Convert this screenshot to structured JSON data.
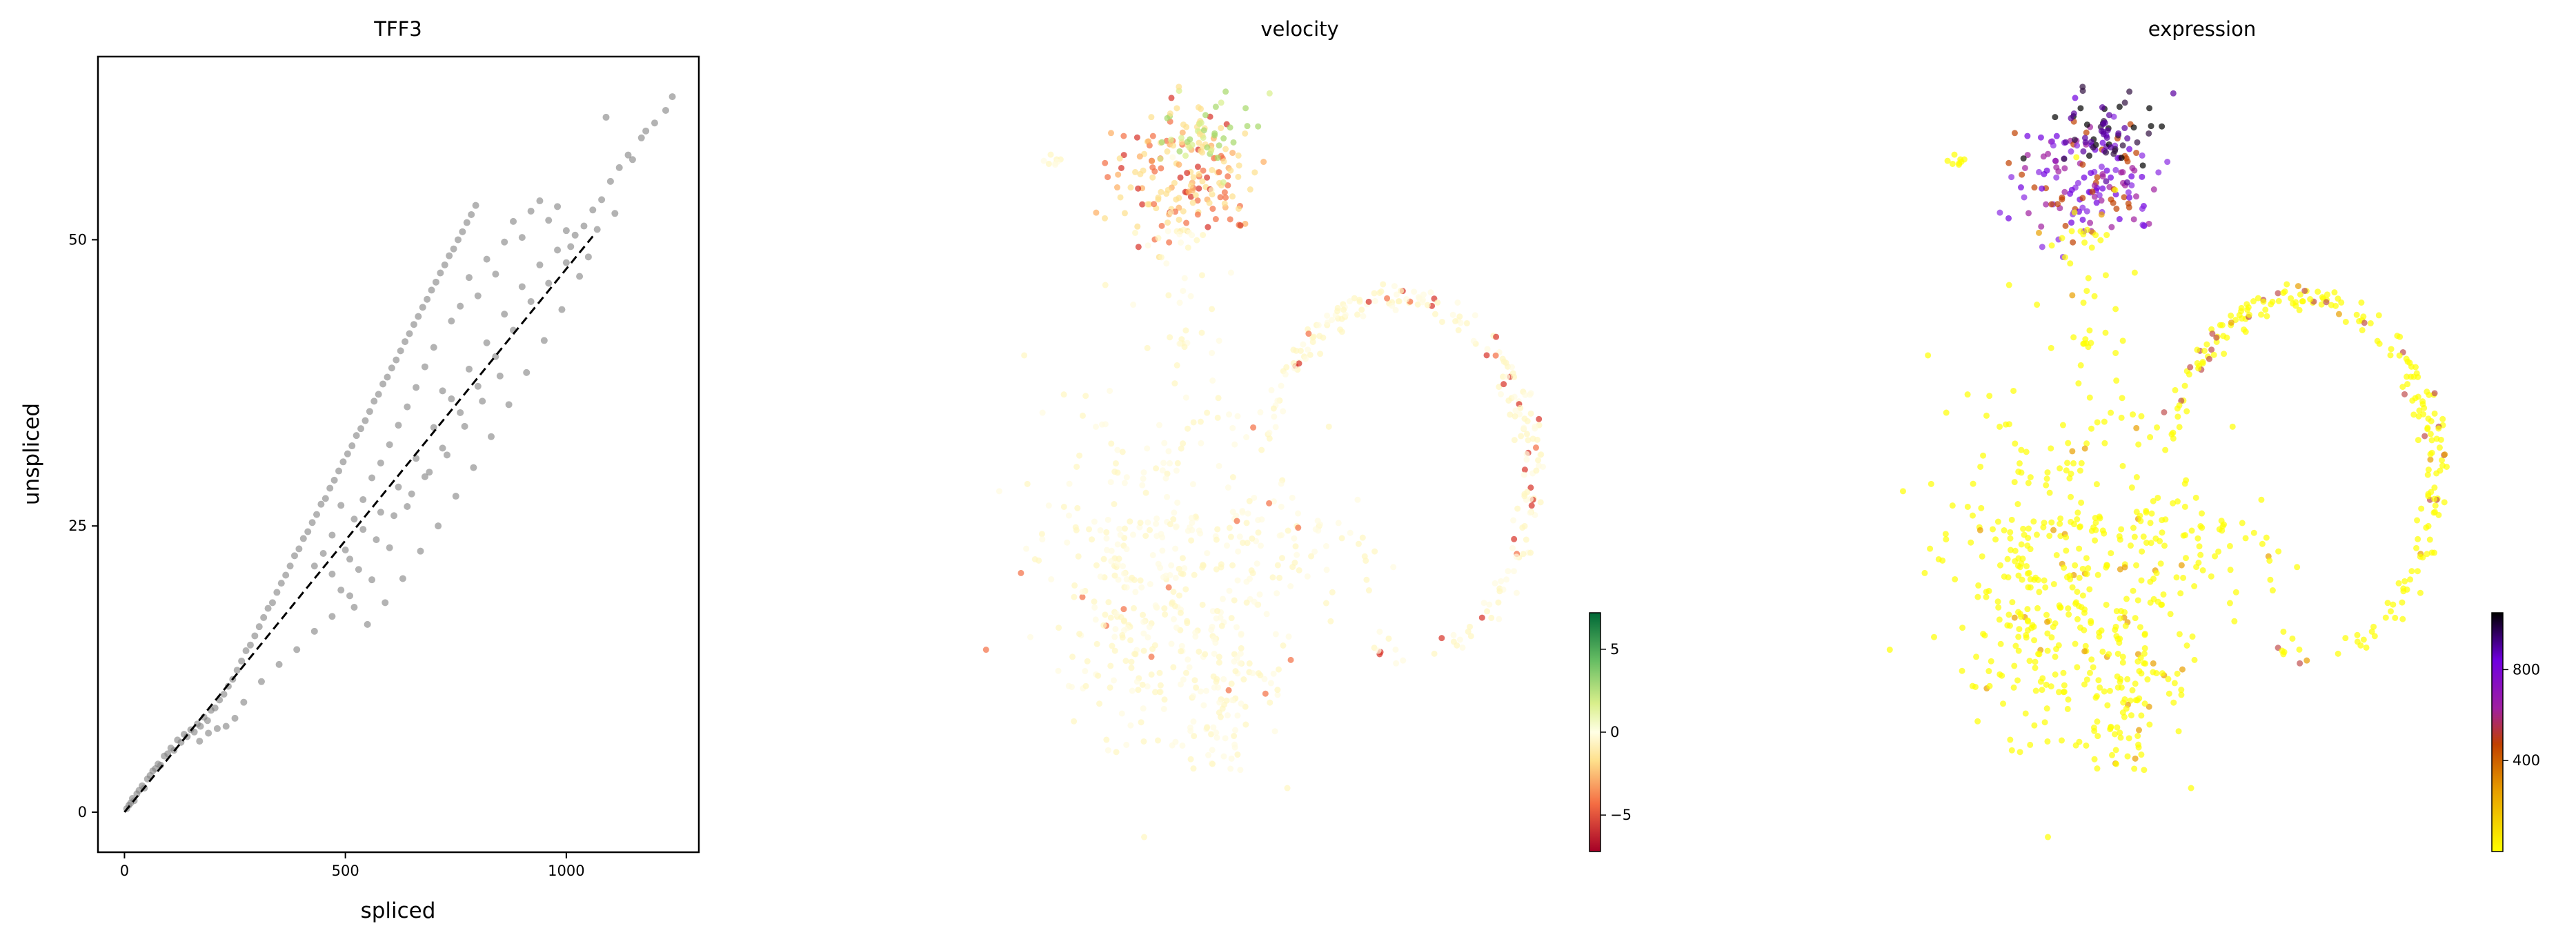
{
  "chart_data": [
    {
      "type": "scatter",
      "title": "TFF3",
      "xlabel": "spliced",
      "ylabel": "unspliced",
      "xlim": [
        -60,
        1300
      ],
      "ylim": [
        -3.5,
        66
      ],
      "xticks": [
        0,
        500,
        1000
      ],
      "yticks": [
        0,
        25,
        50
      ],
      "grid": false,
      "point_color": "#808080",
      "fit_line": {
        "style": "dashed",
        "color": "#000000",
        "x": [
          0,
          1060
        ],
        "y": [
          0,
          50.3
        ]
      },
      "points": [
        [
          5,
          0.3
        ],
        [
          10,
          0.6
        ],
        [
          14,
          0.8
        ],
        [
          18,
          1.2
        ],
        [
          22,
          1.0
        ],
        [
          28,
          1.6
        ],
        [
          33,
          1.9
        ],
        [
          40,
          2.3
        ],
        [
          45,
          2.1
        ],
        [
          52,
          2.9
        ],
        [
          58,
          3.2
        ],
        [
          64,
          3.6
        ],
        [
          70,
          3.8
        ],
        [
          76,
          4.2
        ],
        [
          82,
          4.1
        ],
        [
          90,
          4.9
        ],
        [
          98,
          5.1
        ],
        [
          105,
          5.6
        ],
        [
          112,
          5.4
        ],
        [
          120,
          6.3
        ],
        [
          128,
          6.1
        ],
        [
          135,
          6.8
        ],
        [
          142,
          6.6
        ],
        [
          150,
          7.2
        ],
        [
          158,
          7.0
        ],
        [
          165,
          7.7
        ],
        [
          172,
          7.5
        ],
        [
          180,
          8.3
        ],
        [
          188,
          8.0
        ],
        [
          196,
          8.9
        ],
        [
          205,
          9.1
        ],
        [
          215,
          9.8
        ],
        [
          225,
          10.3
        ],
        [
          235,
          11.0
        ],
        [
          245,
          11.6
        ],
        [
          255,
          12.4
        ],
        [
          265,
          13.2
        ],
        [
          275,
          14.1
        ],
        [
          285,
          14.6
        ],
        [
          295,
          15.4
        ],
        [
          305,
          16.2
        ],
        [
          315,
          17.0
        ],
        [
          325,
          17.8
        ],
        [
          335,
          18.3
        ],
        [
          345,
          19.2
        ],
        [
          355,
          20.0
        ],
        [
          365,
          20.7
        ],
        [
          375,
          21.5
        ],
        [
          385,
          22.4
        ],
        [
          395,
          23.0
        ],
        [
          405,
          23.9
        ],
        [
          415,
          24.5
        ],
        [
          425,
          25.3
        ],
        [
          435,
          26.0
        ],
        [
          445,
          26.9
        ],
        [
          455,
          27.4
        ],
        [
          465,
          28.3
        ],
        [
          475,
          29.0
        ],
        [
          485,
          29.8
        ],
        [
          495,
          30.6
        ],
        [
          505,
          31.3
        ],
        [
          515,
          32.0
        ],
        [
          525,
          32.9
        ],
        [
          535,
          33.5
        ],
        [
          545,
          34.2
        ],
        [
          555,
          35.0
        ],
        [
          565,
          35.9
        ],
        [
          575,
          36.5
        ],
        [
          585,
          37.4
        ],
        [
          595,
          38.0
        ],
        [
          605,
          38.8
        ],
        [
          615,
          39.5
        ],
        [
          625,
          40.3
        ],
        [
          635,
          41.1
        ],
        [
          645,
          41.8
        ],
        [
          655,
          42.6
        ],
        [
          665,
          43.3
        ],
        [
          675,
          44.1
        ],
        [
          685,
          44.8
        ],
        [
          695,
          45.6
        ],
        [
          705,
          46.3
        ],
        [
          715,
          47.1
        ],
        [
          725,
          47.8
        ],
        [
          735,
          48.6
        ],
        [
          745,
          49.2
        ],
        [
          755,
          50.0
        ],
        [
          765,
          50.7
        ],
        [
          775,
          51.5
        ],
        [
          785,
          52.2
        ],
        [
          795,
          53.0
        ],
        [
          430,
          21.5
        ],
        [
          450,
          22.6
        ],
        [
          470,
          20.8
        ],
        [
          490,
          19.4
        ],
        [
          510,
          22.1
        ],
        [
          520,
          17.9
        ],
        [
          540,
          24.7
        ],
        [
          560,
          20.3
        ],
        [
          580,
          26.2
        ],
        [
          600,
          23.1
        ],
        [
          620,
          28.4
        ],
        [
          640,
          26.7
        ],
        [
          660,
          30.9
        ],
        [
          680,
          29.3
        ],
        [
          700,
          33.6
        ],
        [
          720,
          31.8
        ],
        [
          740,
          36.1
        ],
        [
          760,
          34.9
        ],
        [
          780,
          38.7
        ],
        [
          800,
          37.2
        ],
        [
          820,
          41.0
        ],
        [
          840,
          39.8
        ],
        [
          860,
          43.5
        ],
        [
          880,
          42.1
        ],
        [
          900,
          45.9
        ],
        [
          920,
          44.6
        ],
        [
          940,
          47.8
        ],
        [
          960,
          46.2
        ],
        [
          980,
          49.1
        ],
        [
          1000,
          48.0
        ],
        [
          1020,
          50.4
        ],
        [
          1040,
          51.2
        ],
        [
          1060,
          52.6
        ],
        [
          1080,
          53.5
        ],
        [
          1100,
          55.1
        ],
        [
          1120,
          56.3
        ],
        [
          1140,
          57.4
        ],
        [
          1170,
          58.9
        ],
        [
          1200,
          60.2
        ],
        [
          1240,
          62.5
        ],
        [
          1090,
          60.7
        ],
        [
          1150,
          57.0
        ],
        [
          1180,
          59.5
        ],
        [
          1225,
          61.3
        ],
        [
          1050,
          48.5
        ],
        [
          1030,
          46.8
        ],
        [
          990,
          43.9
        ],
        [
          950,
          41.2
        ],
        [
          910,
          38.4
        ],
        [
          870,
          35.6
        ],
        [
          830,
          32.8
        ],
        [
          790,
          30.1
        ],
        [
          750,
          27.6
        ],
        [
          710,
          25.0
        ],
        [
          670,
          22.8
        ],
        [
          630,
          20.4
        ],
        [
          590,
          18.3
        ],
        [
          550,
          16.4
        ],
        [
          510,
          18.9
        ],
        [
          470,
          17.1
        ],
        [
          430,
          15.8
        ],
        [
          390,
          14.2
        ],
        [
          350,
          12.9
        ],
        [
          310,
          11.4
        ],
        [
          270,
          9.6
        ],
        [
          250,
          8.2
        ],
        [
          230,
          7.5
        ],
        [
          210,
          7.3
        ],
        [
          190,
          6.9
        ],
        [
          170,
          6.2
        ],
        [
          520,
          25.6
        ],
        [
          540,
          27.3
        ],
        [
          560,
          29.2
        ],
        [
          580,
          30.5
        ],
        [
          600,
          32.1
        ],
        [
          620,
          33.8
        ],
        [
          640,
          35.4
        ],
        [
          660,
          37.1
        ],
        [
          680,
          38.9
        ],
        [
          700,
          40.6
        ],
        [
          720,
          36.8
        ],
        [
          740,
          42.9
        ],
        [
          760,
          44.2
        ],
        [
          780,
          46.7
        ],
        [
          800,
          45.1
        ],
        [
          820,
          48.3
        ],
        [
          840,
          47.0
        ],
        [
          860,
          49.8
        ],
        [
          880,
          51.6
        ],
        [
          900,
          50.2
        ],
        [
          920,
          52.5
        ],
        [
          940,
          53.4
        ],
        [
          960,
          51.7
        ],
        [
          980,
          52.9
        ],
        [
          1000,
          50.8
        ],
        [
          1010,
          49.4
        ],
        [
          1070,
          50.9
        ],
        [
          1110,
          52.3
        ],
        [
          470,
          24.2
        ],
        [
          490,
          26.8
        ],
        [
          500,
          22.9
        ],
        [
          530,
          21.2
        ],
        [
          570,
          23.8
        ],
        [
          610,
          25.9
        ],
        [
          650,
          27.8
        ],
        [
          690,
          29.7
        ],
        [
          730,
          31.2
        ],
        [
          770,
          33.7
        ],
        [
          810,
          35.9
        ],
        [
          850,
          38.1
        ]
      ]
    },
    {
      "type": "scatter",
      "title": "velocity",
      "colorbar": {
        "ticks": [
          5,
          0,
          -5
        ],
        "range": [
          -7.2,
          7.2
        ],
        "colors": [
          "#a50026",
          "#f46d43",
          "#fee08b",
          "#ffffe5",
          "#d9ef8b",
          "#66bd63",
          "#006837"
        ]
      },
      "grid": false
    },
    {
      "type": "scatter",
      "title": "expression",
      "colorbar": {
        "ticks": [
          800,
          400
        ],
        "range": [
          0,
          1050
        ],
        "colors": [
          "#ffff00",
          "#e8a000",
          "#c04000",
          "#a020a0",
          "#7000e0",
          "#000000"
        ]
      },
      "grid": false
    }
  ]
}
